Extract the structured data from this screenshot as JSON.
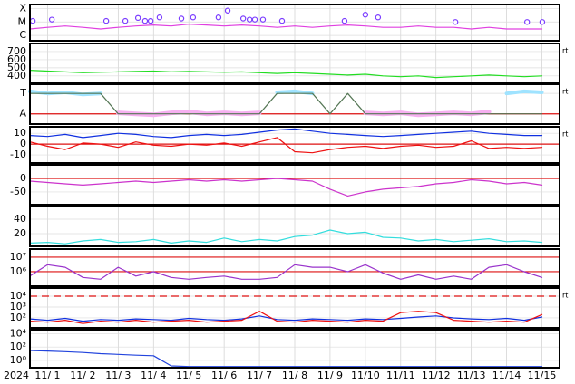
{
  "chart_data": [
    {
      "type": "line",
      "log": true,
      "ylim": [
        4e-07,
        0.0002
      ],
      "yticks": [
        {
          "value": 0.0001,
          "label": "X"
        },
        {
          "value": 1e-05,
          "label": "M"
        },
        {
          "value": 1e-06,
          "label": "C"
        }
      ],
      "x": [
        0,
        0.5,
        1,
        1.5,
        2,
        2.5,
        3,
        3.5,
        4,
        4.5,
        5,
        5.5,
        6,
        6.5,
        7,
        7.5,
        8,
        8.5,
        9,
        9.5,
        10,
        10.5,
        11,
        11.5,
        12,
        12.5,
        13,
        13.5,
        14,
        14.5
      ],
      "series": [
        {
          "color": "#e040e0",
          "values": [
            3e-06,
            4e-06,
            5e-06,
            4e-06,
            3e-06,
            4e-06,
            5e-06,
            6e-06,
            5e-06,
            7e-06,
            6e-06,
            5e-06,
            6e-06,
            5e-06,
            4e-06,
            5e-06,
            4e-06,
            5e-06,
            6e-06,
            5e-06,
            4e-06,
            4e-06,
            5e-06,
            4e-06,
            4e-06,
            3e-06,
            4e-06,
            3e-06,
            3e-06,
            3e-06
          ]
        },
        {
          "color": "#7a3cff",
          "mode": "markers",
          "x": [
            0.08,
            0.62,
            2.16,
            2.7,
            3.06,
            3.26,
            3.42,
            3.67,
            4.29,
            4.62,
            5.34,
            5.6,
            6.04,
            6.22,
            6.37,
            6.6,
            7.14,
            8.91,
            9.5,
            9.86,
            12.05,
            14.08,
            14.51
          ],
          "values": [
            1.2e-05,
            1.5e-05,
            1.2e-05,
            1.2e-05,
            2e-05,
            1.2e-05,
            1.2e-05,
            2.2e-05,
            1.8e-05,
            2.2e-05,
            2.2e-05,
            7e-05,
            1.8e-05,
            1.5e-05,
            1.5e-05,
            1.5e-05,
            1.2e-05,
            1.2e-05,
            3.5e-05,
            2.2e-05,
            1e-05,
            1e-05,
            1e-05
          ]
        }
      ]
    },
    {
      "type": "line",
      "ylim": [
        320,
        800
      ],
      "yticks": [
        700,
        600,
        500,
        400
      ],
      "note": "rt",
      "x": [
        0,
        0.5,
        1,
        1.5,
        2,
        2.5,
        3,
        3.5,
        4,
        4.5,
        5,
        5.5,
        6,
        6.5,
        7,
        7.5,
        8,
        8.5,
        9,
        9.5,
        10,
        10.5,
        11,
        11.5,
        12,
        12.5,
        13,
        13.5,
        14,
        14.5
      ],
      "series": [
        {
          "color": "#22dd22",
          "values": [
            470,
            460,
            450,
            440,
            445,
            450,
            455,
            460,
            450,
            455,
            450,
            445,
            450,
            440,
            430,
            440,
            430,
            420,
            410,
            420,
            400,
            390,
            400,
            380,
            390,
            400,
            410,
            400,
            390,
            400
          ]
        }
      ]
    },
    {
      "type": "line",
      "ylim": [
        -0.5,
        1.45
      ],
      "yticks": [
        {
          "value": 1,
          "label": "T"
        },
        {
          "value": 0,
          "label": "A"
        }
      ],
      "ref_lines": [
        0
      ],
      "note": "rt",
      "x": [
        0,
        0.5,
        1,
        1.5,
        2,
        2.5,
        3,
        3.5,
        4,
        4.5,
        5,
        5.5,
        6,
        6.5,
        7,
        7.5,
        8,
        8.5,
        9,
        9.5,
        10,
        10.5,
        11,
        11.5,
        12,
        12.5,
        13,
        13.5,
        14,
        14.5
      ],
      "series": [
        {
          "color": "#9fe3ff",
          "width": 4,
          "values": [
            1.1,
            1.0,
            1.05,
            0.95,
            1.0,
            null,
            null,
            null,
            null,
            null,
            null,
            null,
            null,
            null,
            1.05,
            1.1,
            1.0,
            null,
            null,
            null,
            null,
            null,
            null,
            null,
            null,
            null,
            null,
            1.0,
            1.1,
            1.05
          ]
        },
        {
          "color": "#f6b0f0",
          "width": 5,
          "values": [
            null,
            null,
            null,
            null,
            null,
            0.05,
            0,
            -0.05,
            0.05,
            0.1,
            0,
            0.05,
            0,
            0.05,
            null,
            null,
            null,
            0,
            null,
            0.05,
            0,
            0.05,
            -0.05,
            0,
            0.05,
            0,
            0.1,
            null,
            null,
            null
          ]
        },
        {
          "color": "#557755",
          "values": [
            1,
            1,
            1,
            1,
            1,
            0,
            0,
            0,
            0,
            0,
            0,
            0,
            0,
            0,
            1,
            1,
            1,
            0,
            1,
            0,
            0,
            0,
            0,
            0,
            0,
            0,
            0,
            0,
            0,
            0
          ]
        }
      ]
    },
    {
      "type": "line",
      "ylim": [
        -17.5,
        16
      ],
      "yticks": [
        10,
        0,
        -10
      ],
      "ref_lines": [
        0
      ],
      "note": "rt",
      "x": [
        0,
        0.5,
        1,
        1.5,
        2,
        2.5,
        3,
        3.5,
        4,
        4.5,
        5,
        5.5,
        6,
        6.5,
        7,
        7.5,
        8,
        8.5,
        9,
        9.5,
        10,
        10.5,
        11,
        11.5,
        12,
        12.5,
        13,
        13.5,
        14,
        14.5
      ],
      "series": [
        {
          "color": "#1030e0",
          "values": [
            8,
            7,
            9,
            6,
            8,
            10,
            9,
            7,
            6,
            8,
            9,
            8,
            9,
            11,
            13,
            14,
            12,
            10,
            9,
            8,
            7,
            8,
            9,
            10,
            11,
            12,
            10,
            9,
            8,
            8
          ]
        },
        {
          "color": "#ee1111",
          "values": [
            2,
            -2,
            -5,
            1,
            0,
            -3,
            2,
            -1,
            -2,
            0,
            -1,
            1,
            -2,
            2,
            6,
            -7,
            -8,
            -5,
            -3,
            -2,
            -4,
            -2,
            -1,
            -3,
            -2,
            3,
            -4,
            -3,
            -4,
            -3
          ]
        }
      ]
    },
    {
      "type": "line",
      "ylim": [
        -97,
        50
      ],
      "yticks": [
        0,
        -50
      ],
      "ref_lines": [
        0
      ],
      "x": [
        0,
        0.5,
        1,
        1.5,
        2,
        2.5,
        3,
        3.5,
        4,
        4.5,
        5,
        5.5,
        6,
        6.5,
        7,
        7.5,
        8,
        8.5,
        9,
        9.5,
        10,
        10.5,
        11,
        11.5,
        12,
        12.5,
        13,
        13.5,
        14,
        14.5
      ],
      "series": [
        {
          "color": "#cc33cc",
          "values": [
            -10,
            -15,
            -20,
            -25,
            -20,
            -15,
            -10,
            -15,
            -10,
            -5,
            -10,
            -5,
            -10,
            -5,
            0,
            -5,
            -10,
            -40,
            -65,
            -50,
            -40,
            -35,
            -30,
            -20,
            -15,
            -5,
            -10,
            -20,
            -15,
            -25
          ]
        }
      ]
    },
    {
      "type": "line",
      "ylim": [
        2.5,
        57.5
      ],
      "yticks": [
        40,
        20
      ],
      "x": [
        0,
        0.5,
        1,
        1.5,
        2,
        2.5,
        3,
        3.5,
        4,
        4.5,
        5,
        5.5,
        6,
        6.5,
        7,
        7.5,
        8,
        8.5,
        9,
        9.5,
        10,
        10.5,
        11,
        11.5,
        12,
        12.5,
        13,
        13.5,
        14,
        14.5
      ],
      "series": [
        {
          "color": "#33dddd",
          "values": [
            7,
            8,
            6,
            10,
            12,
            8,
            9,
            12,
            7,
            10,
            8,
            14,
            9,
            12,
            10,
            16,
            18,
            25,
            20,
            22,
            15,
            14,
            10,
            12,
            9,
            11,
            13,
            9,
            10,
            8
          ]
        }
      ]
    },
    {
      "type": "line",
      "log": true,
      "ylim": [
        100000.0,
        36000000.0
      ],
      "yticks": [
        {
          "value": 10000000.0,
          "label": "10⁷"
        },
        {
          "value": 1000000.0,
          "label": "10⁶"
        }
      ],
      "ref_lines": [
        10000000.0,
        1000000.0
      ],
      "x": [
        0,
        0.5,
        1,
        1.5,
        2,
        2.5,
        3,
        3.5,
        4,
        4.5,
        5,
        5.5,
        6,
        6.5,
        7,
        7.5,
        8,
        8.5,
        9,
        9.5,
        10,
        10.5,
        11,
        11.5,
        12,
        12.5,
        13,
        13.5,
        14,
        14.5
      ],
      "series": [
        {
          "color": "#9933cc",
          "values": [
            500000.0,
            3000000.0,
            2000000.0,
            400000.0,
            300000.0,
            2000000.0,
            500000.0,
            1000000.0,
            400000.0,
            300000.0,
            400000.0,
            500000.0,
            300000.0,
            300000.0,
            400000.0,
            3000000.0,
            2000000.0,
            2000000.0,
            1000000.0,
            3000000.0,
            800000.0,
            300000.0,
            600000.0,
            300000.0,
            500000.0,
            300000.0,
            2000000.0,
            3000000.0,
            1000000.0,
            400000.0
          ]
        }
      ]
    },
    {
      "type": "line",
      "log": true,
      "ylim": [
        12,
        56000
      ],
      "yticks": [
        {
          "value": 10000,
          "label": "10⁴"
        },
        {
          "value": 1000,
          "label": "10³"
        },
        {
          "value": 100,
          "label": "10²"
        }
      ],
      "ref_lines": [
        10000
      ],
      "ref_dash": true,
      "note": "rt",
      "x": [
        0,
        0.5,
        1,
        1.5,
        2,
        2.5,
        3,
        3.5,
        4,
        4.5,
        5,
        5.5,
        6,
        6.5,
        7,
        7.5,
        8,
        8.5,
        9,
        9.5,
        10,
        10.5,
        11,
        11.5,
        12,
        12.5,
        13,
        13.5,
        14,
        14.5
      ],
      "series": [
        {
          "color": "#1030e0",
          "values": [
            80,
            60,
            90,
            50,
            70,
            60,
            80,
            70,
            60,
            90,
            70,
            60,
            80,
            150,
            70,
            60,
            80,
            70,
            60,
            80,
            70,
            90,
            120,
            150,
            100,
            80,
            70,
            90,
            60,
            120
          ]
        },
        {
          "color": "#ee1111",
          "values": [
            50,
            40,
            60,
            30,
            50,
            40,
            60,
            40,
            50,
            60,
            40,
            50,
            60,
            400,
            50,
            40,
            60,
            50,
            40,
            60,
            50,
            300,
            400,
            300,
            60,
            50,
            40,
            50,
            40,
            200
          ]
        }
      ]
    },
    {
      "type": "line",
      "log": true,
      "ylim": [
        0.08,
        40000
      ],
      "yticks": [
        {
          "value": 10000,
          "label": "10⁴"
        },
        {
          "value": 100,
          "label": "10²"
        },
        {
          "value": 1,
          "label": "10⁰"
        }
      ],
      "x": [
        0,
        0.5,
        1,
        1.5,
        2,
        2.5,
        3,
        3.5,
        4,
        4.5,
        5,
        5.5,
        6,
        6.5,
        7,
        7.5,
        8,
        8.5,
        9,
        9.5,
        10,
        10.5,
        11,
        11.5,
        12,
        12.5,
        13,
        13.5,
        14,
        14.5
      ],
      "series": [
        {
          "color": "#2244dd",
          "values": [
            30,
            25,
            20,
            15,
            10,
            8,
            6,
            5,
            0.15,
            0.12,
            0.12,
            0.12,
            0.12,
            0.12,
            0.12,
            0.12,
            0.12,
            0.12,
            0.12,
            0.12,
            0.12,
            0.12,
            0.12,
            0.12,
            0.12,
            0.12,
            0.12,
            0.12,
            0.12,
            0.12
          ]
        }
      ],
      "x_label": "2024",
      "xlim": [
        0,
        15
      ],
      "xticks": [
        {
          "value": 0.5,
          "label": "11/ 1"
        },
        {
          "value": 1.5,
          "label": "11/ 2"
        },
        {
          "value": 2.5,
          "label": "11/ 3"
        },
        {
          "value": 3.5,
          "label": "11/ 4"
        },
        {
          "value": 4.5,
          "label": "11/ 5"
        },
        {
          "value": 5.5,
          "label": "11/ 6"
        },
        {
          "value": 6.5,
          "label": "11/ 7"
        },
        {
          "value": 7.5,
          "label": "11/ 8"
        },
        {
          "value": 8.5,
          "label": "11/ 9"
        },
        {
          "value": 9.5,
          "label": "11/10"
        },
        {
          "value": 10.5,
          "label": "11/11"
        },
        {
          "value": 11.5,
          "label": "11/12"
        },
        {
          "value": 12.5,
          "label": "11/13"
        },
        {
          "value": 13.5,
          "label": "11/14"
        },
        {
          "value": 14.5,
          "label": "11/15"
        }
      ]
    }
  ]
}
